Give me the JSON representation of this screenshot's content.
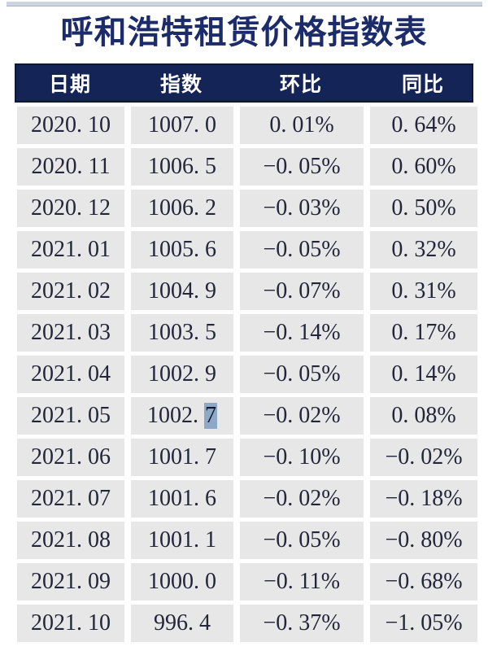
{
  "page": {
    "title": "呼和浩特租赁价格指数表"
  },
  "table": {
    "headers": [
      "日期",
      "指数",
      "环比",
      "同比"
    ],
    "rows": [
      {
        "date": "2020. 10",
        "index": "1007. 0",
        "mom": "0. 01%",
        "yoy": "0. 64%"
      },
      {
        "date": "2020. 11",
        "index": "1006. 5",
        "mom": "−0. 05%",
        "yoy": "0. 60%"
      },
      {
        "date": "2020. 12",
        "index": "1006. 2",
        "mom": "−0. 03%",
        "yoy": "0. 50%"
      },
      {
        "date": "2021. 01",
        "index": "1005. 6",
        "mom": "−0. 05%",
        "yoy": "0. 32%"
      },
      {
        "date": "2021. 02",
        "index": "1004. 9",
        "mom": "−0. 07%",
        "yoy": "0. 31%"
      },
      {
        "date": "2021. 03",
        "index": "1003. 5",
        "mom": "−0. 14%",
        "yoy": "0. 17%"
      },
      {
        "date": "2021. 04",
        "index": "1002. 9",
        "mom": "−0. 05%",
        "yoy": "0. 14%"
      },
      {
        "date": "2021. 05",
        "index_prefix": "1002. ",
        "index_highlight": "7",
        "mom": "−0. 02%",
        "yoy": "0. 08%"
      },
      {
        "date": "2021. 06",
        "index": "1001. 7",
        "mom": "−0. 10%",
        "yoy": "−0. 02%"
      },
      {
        "date": "2021. 07",
        "index": "1001. 6",
        "mom": "−0. 02%",
        "yoy": "−0. 18%"
      },
      {
        "date": "2021. 08",
        "index": "1001. 1",
        "mom": "−0. 05%",
        "yoy": "−0. 80%"
      },
      {
        "date": "2021. 09",
        "index": "1000. 0",
        "mom": "−0. 11%",
        "yoy": "−0. 68%"
      },
      {
        "date": "2021. 10",
        "index": "996. 4",
        "mom": "−0. 37%",
        "yoy": "−1. 05%"
      }
    ]
  },
  "colors": {
    "title_text": "#1c2b6a",
    "header_bg": "#152457",
    "header_border": "#0d1838",
    "header_text": "#ffffff",
    "cell_bg": "#e8e7e7",
    "cell_text": "#23263a",
    "selection_bg": "#8ea8c8",
    "top_strip": "#cdd3e0"
  }
}
